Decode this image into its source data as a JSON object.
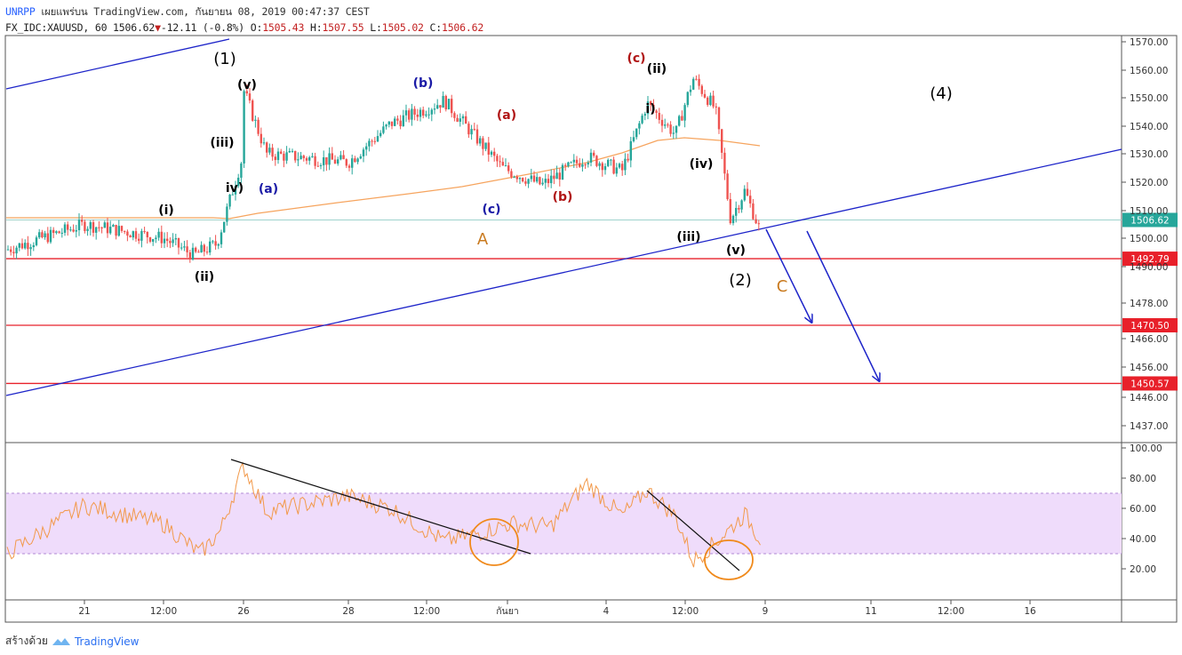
{
  "header": {
    "line1": {
      "ticker": "UNRPP",
      "publisher": "เผยแพร่บน TradingView.com, กันยายน 08, 2019 00:47:37 CEST"
    },
    "line2": {
      "symbol": "FX_IDC:XAUUSD, 60",
      "last": "1506.62",
      "change": "-12.11 (-0.8%)",
      "o_label": "O:",
      "o": "1505.43",
      "h_label": "H:",
      "h": "1507.55",
      "l_label": "L:",
      "l": "1505.02",
      "c_label": "C:",
      "c": "1506.62"
    }
  },
  "footer": {
    "made_with": "สร้างด้วย",
    "brand": "TradingView"
  },
  "colors": {
    "up": "#26a69a",
    "down": "#ef5350",
    "blue": "#1d24c9",
    "red_line": "#e8202a",
    "ma": "#f6a45e",
    "rsi": "#f2994a",
    "rsi_band": "#efdcfb",
    "orange_circle": "#f08a1c",
    "price_tag_teal": "#26a69a",
    "price_tag_red": "#e8202a"
  },
  "chart_data": [
    {
      "type": "candlestick",
      "symbol": "FX_IDC:XAUUSD",
      "interval": "60",
      "y_axis_ticks": [
        "1570.00",
        "1560.00",
        "1550.00",
        "1540.00",
        "1530.00",
        "1520.00",
        "1510.00",
        "1500.00",
        "1490.00",
        "1478.00",
        "1466.00",
        "1456.00",
        "1446.00",
        "1437.00"
      ],
      "x_axis_ticks": [
        "21",
        "12:00",
        "26",
        "28",
        "12:00",
        "กันยา",
        "4",
        "12:00",
        "9",
        "11",
        "12:00",
        "16"
      ],
      "last_price_label": "1506.62",
      "horizontal_levels": [
        {
          "label": "1492.79",
          "value": 1492.79
        },
        {
          "label": "1470.50",
          "value": 1470.5
        },
        {
          "label": "1450.57",
          "value": 1450.57
        }
      ],
      "approx_close_path": [
        {
          "x": "Aug 20",
          "y": 1496
        },
        {
          "x": "Aug 21",
          "y": 1505
        },
        {
          "x": "Aug 21 12:00",
          "y": 1500
        },
        {
          "x": "Aug 22",
          "y": 1494
        },
        {
          "x": "Aug 23",
          "y": 1498
        },
        {
          "x": "Aug 23 late",
          "y": 1528
        },
        {
          "x": "Aug 26",
          "y": 1553
        },
        {
          "x": "Aug 26 12:00",
          "y": 1530
        },
        {
          "x": "Aug 27",
          "y": 1527
        },
        {
          "x": "Aug 28",
          "y": 1541
        },
        {
          "x": "Aug 29",
          "y": 1546
        },
        {
          "x": "Aug 29 12:00",
          "y": 1549
        },
        {
          "x": "Aug 30",
          "y": 1525
        },
        {
          "x": "Aug 31",
          "y": 1519
        },
        {
          "x": "Sep 1",
          "y": 1529
        },
        {
          "x": "Sep 2",
          "y": 1524
        },
        {
          "x": "Sep 3",
          "y": 1548
        },
        {
          "x": "Sep 4",
          "y": 1537
        },
        {
          "x": "Sep 4 late",
          "y": 1557
        },
        {
          "x": "Sep 5",
          "y": 1546
        },
        {
          "x": "Sep 5 12:00",
          "y": 1507
        },
        {
          "x": "Sep 6",
          "y": 1517
        },
        {
          "x": "Sep 6 mid",
          "y": 1503
        },
        {
          "x": "Sep 6 late",
          "y": 1527
        },
        {
          "x": "Sep 8",
          "y": 1506.62
        }
      ],
      "wave_labels": [
        {
          "text": "(1)",
          "color": "#000000"
        },
        {
          "text": "(v)",
          "color": "#000000"
        },
        {
          "text": "(iii)",
          "color": "#000000"
        },
        {
          "text": "iv)",
          "color": "#000000"
        },
        {
          "text": "(i)",
          "color": "#000000"
        },
        {
          "text": "(ii)",
          "color": "#000000"
        },
        {
          "text": "(a)",
          "color": "#1a1aa6"
        },
        {
          "text": "(b)",
          "color": "#1a1aa6"
        },
        {
          "text": "(c)",
          "color": "#1a1aa6"
        },
        {
          "text": "A",
          "color": "#c97a1f"
        },
        {
          "text": "(a)",
          "color": "#b01515"
        },
        {
          "text": "(b)",
          "color": "#b01515"
        },
        {
          "text": "(c)",
          "color": "#b01515"
        },
        {
          "text": "(ii)",
          "color": "#000000"
        },
        {
          "text": "i)",
          "color": "#000000"
        },
        {
          "text": "(iv)",
          "color": "#000000"
        },
        {
          "text": "(iii)",
          "color": "#000000"
        },
        {
          "text": "(v)",
          "color": "#000000"
        },
        {
          "text": "(2)",
          "color": "#000000"
        },
        {
          "text": "C",
          "color": "#c97a1f"
        },
        {
          "text": "(4)",
          "color": "#000000"
        }
      ]
    },
    {
      "type": "line",
      "name": "RSI",
      "y_axis_ticks": [
        "100.00",
        "80.00",
        "60.00",
        "40.00",
        "20.00"
      ],
      "band": [
        30,
        70
      ],
      "approx_values": [
        {
          "x": "Aug 20",
          "y": 30
        },
        {
          "x": "Aug 21",
          "y": 62
        },
        {
          "x": "Aug 21 12:00",
          "y": 50
        },
        {
          "x": "Aug 22",
          "y": 30
        },
        {
          "x": "Aug 23",
          "y": 45
        },
        {
          "x": "Aug 26",
          "y": 88
        },
        {
          "x": "Aug 26 12:00",
          "y": 58
        },
        {
          "x": "Aug 28",
          "y": 68
        },
        {
          "x": "Aug 29",
          "y": 60
        },
        {
          "x": "Aug 30",
          "y": 38
        },
        {
          "x": "Aug 31",
          "y": 44
        },
        {
          "x": "Sep 1",
          "y": 50
        },
        {
          "x": "Sep 2",
          "y": 48
        },
        {
          "x": "Sep 3",
          "y": 77
        },
        {
          "x": "Sep 4",
          "y": 55
        },
        {
          "x": "Sep 4 late",
          "y": 72
        },
        {
          "x": "Sep 5",
          "y": 55
        },
        {
          "x": "Sep 5 12:00",
          "y": 25
        },
        {
          "x": "Sep 6",
          "y": 40
        },
        {
          "x": "Sep 6 late",
          "y": 56
        },
        {
          "x": "Sep 8",
          "y": 40
        }
      ]
    }
  ]
}
